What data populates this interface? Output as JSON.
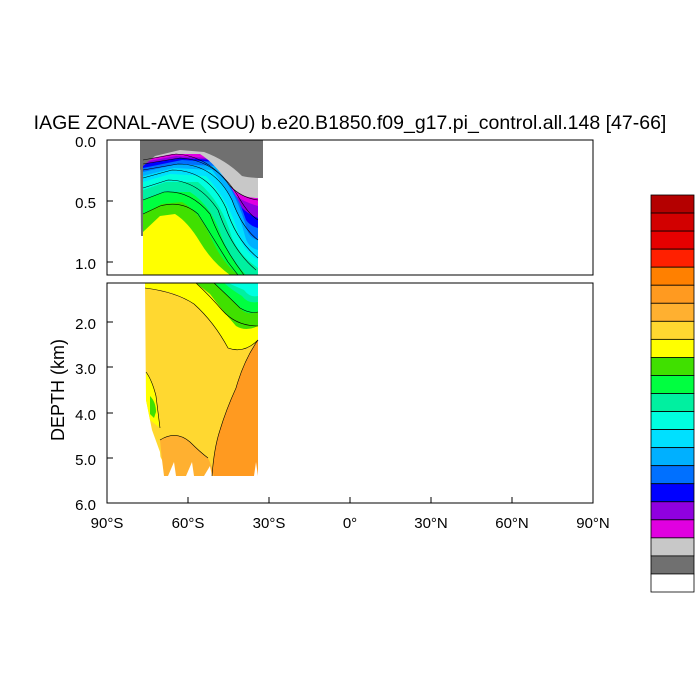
{
  "chart_data": {
    "type": "contour",
    "title": "IAGE ZONAL-AVE (SOU) b.e20.B1850.f09_g17.pi_control.all.148 [47-66]",
    "ylabel": "DEPTH (km)",
    "xlabel": "",
    "x_ticks": [
      "90°S",
      "60°S",
      "30°S",
      "0°",
      "30°N",
      "60°N",
      "90°N"
    ],
    "x_tick_values": [
      -90,
      -60,
      -30,
      0,
      30,
      60,
      90
    ],
    "xlim": [
      -90,
      90
    ],
    "upper_panel": {
      "ylim": [
        0,
        1.1
      ],
      "y_ticks": [
        "0.0",
        "0.5",
        "1.0"
      ],
      "y_tick_values": [
        0,
        0.5,
        1.0
      ]
    },
    "lower_panel": {
      "ylim": [
        1.1,
        6.0
      ],
      "y_ticks": [
        "2.0",
        "3.0",
        "4.0",
        "5.0",
        "6.0"
      ],
      "y_tick_values": [
        2,
        3,
        4,
        5,
        6
      ]
    },
    "data_extent_lat": [
      -78,
      -34
    ],
    "colorbar": {
      "orientation": "vertical",
      "placement": "right",
      "colors": [
        "#b40000",
        "#d20000",
        "#e60000",
        "#ff2000",
        "#ff8000",
        "#ff9a20",
        "#ffb030",
        "#ffd830",
        "#ffff00",
        "#40e000",
        "#00ff40",
        "#00f0a0",
        "#00ffe0",
        "#00e0ff",
        "#00b0ff",
        "#0070ff",
        "#0000ff",
        "#9000e0",
        "#e000e0",
        "#c8c8c8",
        "#707070",
        "#ffffff"
      ]
    },
    "fill_colors": {
      "gray": "#707070",
      "light_gray": "#c8c8c8",
      "magenta": "#e000e0",
      "purple": "#9000e0",
      "blue": "#0000ff",
      "medium_blue": "#0070ff",
      "sky_blue": "#00b0ff",
      "light_cyan": "#00e0ff",
      "cyan": "#00ffe0",
      "aqua_green": "#00f0a0",
      "green": "#00ff40",
      "dark_green": "#40e000",
      "yellow": "#ffff00",
      "gold": "#ffd830",
      "light_orange": "#ffb030",
      "orange": "#ff9a20"
    }
  }
}
